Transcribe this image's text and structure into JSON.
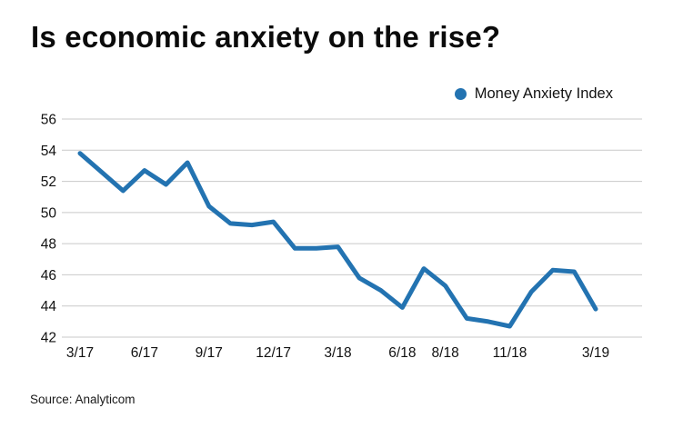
{
  "header": {
    "title": "Is economic anxiety on the rise?"
  },
  "legend": {
    "label": "Money Anxiety Index",
    "marker_color": "#2373b1"
  },
  "source": {
    "text": "Source: Analyticom"
  },
  "chart_data": {
    "type": "line",
    "title": "Is economic anxiety on the rise?",
    "xlabel": "",
    "ylabel": "",
    "x": [
      "3/17",
      "4/17",
      "5/17",
      "6/17",
      "7/17",
      "8/17",
      "9/17",
      "10/17",
      "11/17",
      "12/17",
      "1/18",
      "2/18",
      "3/18",
      "4/18",
      "5/18",
      "6/18",
      "7/18",
      "8/18",
      "9/18",
      "10/18",
      "11/18",
      "12/18",
      "1/19",
      "2/19",
      "3/19"
    ],
    "series": [
      {
        "name": "Money Anxiety Index",
        "color": "#2373b1",
        "values": [
          53.8,
          52.6,
          51.4,
          52.7,
          51.8,
          53.2,
          50.4,
          49.3,
          49.2,
          49.4,
          47.7,
          47.7,
          47.8,
          45.8,
          45.0,
          43.9,
          46.4,
          45.3,
          43.2,
          43.0,
          42.7,
          44.9,
          46.3,
          46.2,
          43.8
        ]
      }
    ],
    "x_tick_labels": [
      "3/17",
      "6/17",
      "9/17",
      "12/17",
      "3/18",
      "6/18",
      "8/18",
      "11/18",
      "3/19"
    ],
    "x_tick_month_index": [
      0,
      3,
      6,
      9,
      12,
      15,
      17,
      20,
      24
    ],
    "y_ticks": [
      56,
      54,
      52,
      50,
      48,
      46,
      44,
      42
    ],
    "ylim": [
      42,
      56
    ],
    "grid": "horizontal",
    "grid_color": "#c9c9c9",
    "line_width": 5,
    "legend_position": "top-right"
  }
}
